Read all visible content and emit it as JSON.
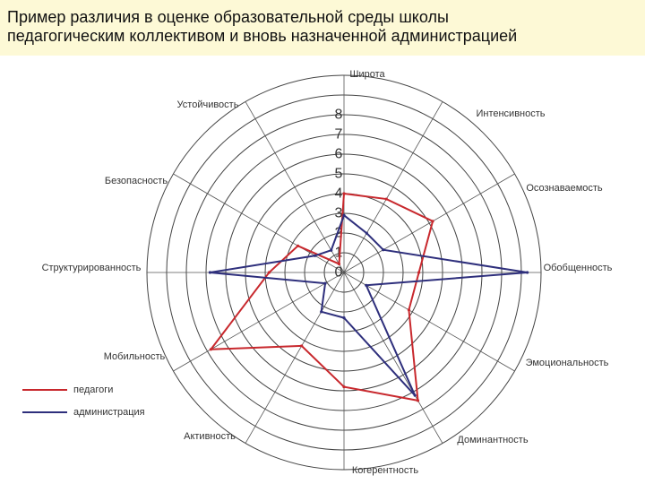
{
  "header": {
    "title_line1": "Пример различия в оценке образовательной среды школы",
    "title_line2": "педагогическим коллективом и вновь назначенной администрацией"
  },
  "chart_data": {
    "type": "radar",
    "axes": [
      "Широта",
      "Интенсивность",
      "Осознаваемость",
      "Обобщенность",
      "Эмоциональность",
      "Доминантность",
      "Когерентность",
      "Активность",
      "Мобильность",
      "Структурированность",
      "Безопасность",
      "Устойчивость"
    ],
    "ticks": [
      "0",
      "1",
      "2",
      "3",
      "4",
      "5",
      "6",
      "7",
      "8"
    ],
    "rmax": 10,
    "series": [
      {
        "name": "педагоги",
        "color": "#c8282d",
        "values": [
          4,
          4.3,
          5.2,
          3.8,
          3.8,
          7.5,
          5.8,
          4.3,
          7.8,
          3.8,
          2.7,
          0.5
        ]
      },
      {
        "name": "администрация",
        "color": "#2e2f7c",
        "values": [
          2.9,
          2.3,
          2.3,
          9.3,
          1.3,
          7.2,
          2.3,
          2.3,
          1.1,
          6.8,
          1.7,
          1.3
        ]
      }
    ],
    "grid": true,
    "legend_position": "bottom-left"
  }
}
